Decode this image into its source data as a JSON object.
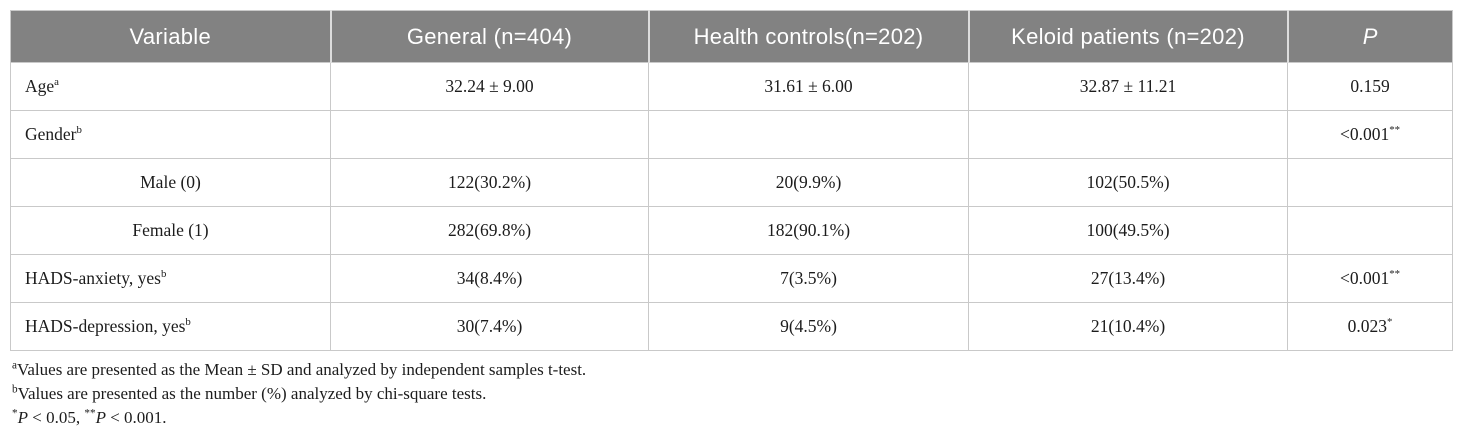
{
  "colors": {
    "header_bg": "#828282",
    "header_text": "#ffffff",
    "grid_border": "#c9c9c9",
    "body_text": "#1c1c1c"
  },
  "table": {
    "columns": [
      {
        "label": "Variable"
      },
      {
        "label": "General (n=404)"
      },
      {
        "label": "Health controls(n=202)"
      },
      {
        "label": "Keloid patients (n=202)"
      },
      {
        "label": "P"
      }
    ],
    "rows": [
      {
        "variable": "Age",
        "var_sup": "a",
        "general": "32.24 ± 9.00",
        "health": "31.61 ± 6.00",
        "keloid": "32.87 ± 11.21",
        "p": "0.159",
        "p_sup": ""
      },
      {
        "variable": "Gender",
        "var_sup": "b",
        "general": "",
        "health": "",
        "keloid": "",
        "p": "<0.001",
        "p_sup": "**"
      },
      {
        "variable": "Male (0)",
        "var_sup": "",
        "general": "122(30.2%)",
        "health": "20(9.9%)",
        "keloid": "102(50.5%)",
        "p": "",
        "p_sup": ""
      },
      {
        "variable": "Female (1)",
        "var_sup": "",
        "general": "282(69.8%)",
        "health": "182(90.1%)",
        "keloid": "100(49.5%)",
        "p": "",
        "p_sup": ""
      },
      {
        "variable": "HADS-anxiety, yes",
        "var_sup": "b",
        "general": "34(8.4%)",
        "health": "7(3.5%)",
        "keloid": "27(13.4%)",
        "p": "<0.001",
        "p_sup": "**"
      },
      {
        "variable": "HADS-depression, yes",
        "var_sup": "b",
        "general": "30(7.4%)",
        "health": "9(4.5%)",
        "keloid": "21(10.4%)",
        "p": "0.023",
        "p_sup": "*"
      }
    ]
  },
  "footnotes": {
    "a_sup": "a",
    "a_text": "Values are presented as the Mean ± SD and analyzed by independent samples t-test.",
    "b_sup": "b",
    "b_text": "Values are presented as the number (%) analyzed by chi-square tests.",
    "sig": {
      "star1": "*",
      "p1": "P",
      "t1": " < 0.05, ",
      "star2": "**",
      "p2": "P",
      "t2": " < 0.001."
    }
  }
}
